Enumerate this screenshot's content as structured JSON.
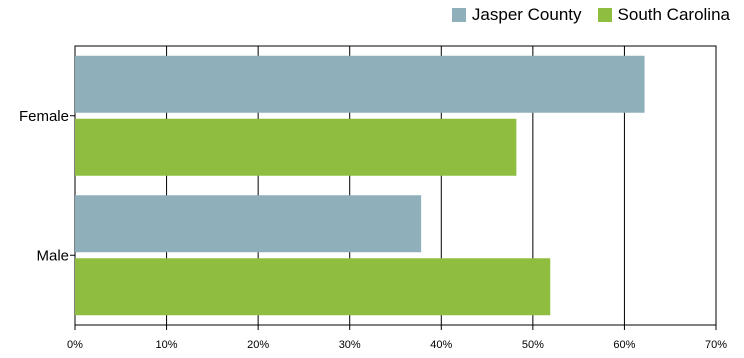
{
  "chart_data": {
    "type": "bar",
    "orientation": "horizontal",
    "categories": [
      "Female",
      "Male"
    ],
    "series": [
      {
        "name": "Jasper County",
        "values": [
          62.2,
          37.8
        ],
        "color": "#8fafbb"
      },
      {
        "name": "South Carolina",
        "values": [
          48.2,
          51.9
        ],
        "color": "#8fbd3f"
      }
    ],
    "xticks": [
      "0%",
      "10%",
      "20%",
      "30%",
      "40%",
      "50%",
      "60%",
      "70%"
    ],
    "xlim": [
      0,
      70
    ],
    "grid": true,
    "legend": "top-right"
  }
}
